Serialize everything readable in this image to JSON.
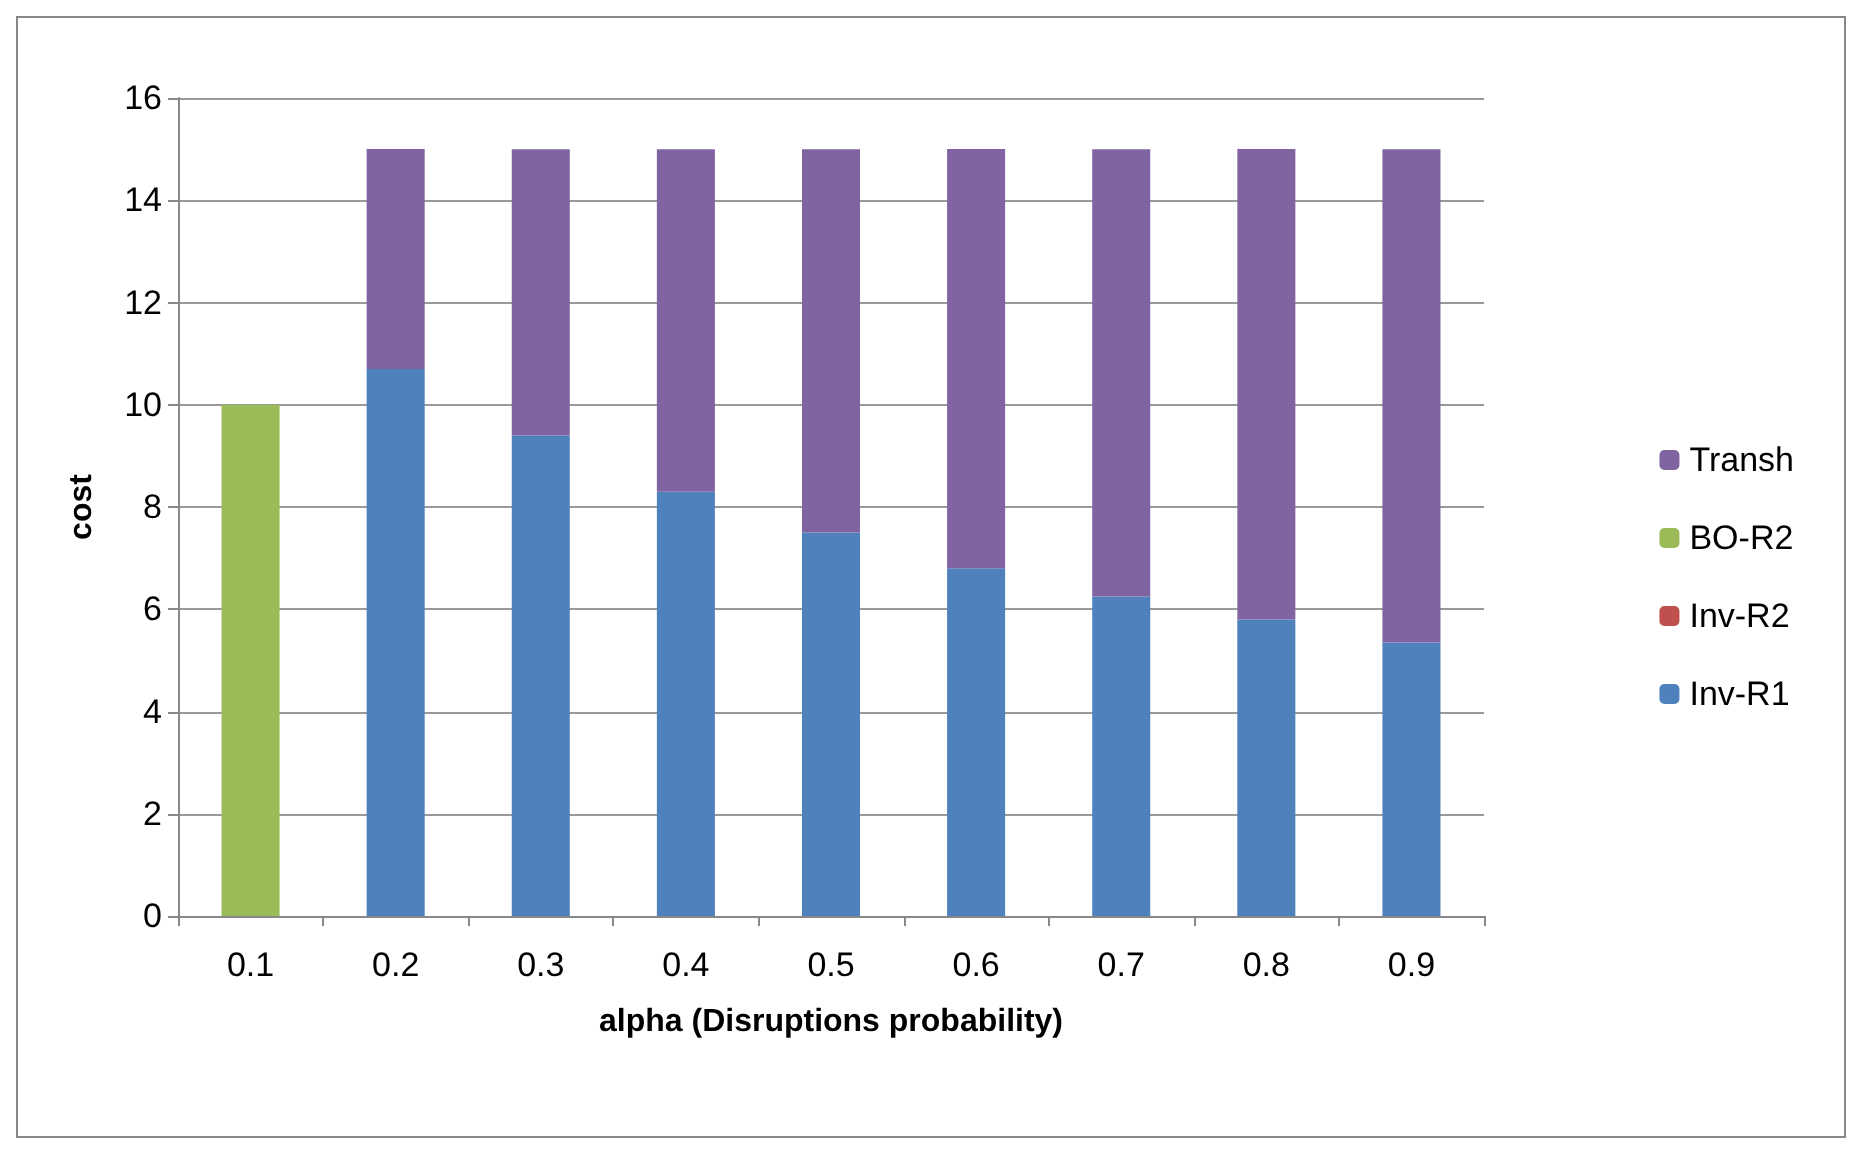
{
  "chart_data": {
    "type": "bar",
    "stacked": true,
    "xlabel": "alpha (Disruptions probability)",
    "ylabel": "cost",
    "categories": [
      "0.1",
      "0.2",
      "0.3",
      "0.4",
      "0.5",
      "0.6",
      "0.7",
      "0.8",
      "0.9"
    ],
    "series": [
      {
        "name": "Inv-R1",
        "color": "#4f81bd",
        "values": [
          0,
          10.7,
          9.4,
          8.3,
          7.5,
          6.8,
          6.25,
          5.8,
          5.35
        ]
      },
      {
        "name": "Inv-R2",
        "color": "#c0504d",
        "values": [
          0,
          0,
          0,
          0,
          0,
          0,
          0,
          0,
          0
        ]
      },
      {
        "name": "BO-R2",
        "color": "#9bbb59",
        "values": [
          10,
          0,
          0,
          0,
          0,
          0,
          0,
          0,
          0
        ]
      },
      {
        "name": "Transh",
        "color": "#8064a2",
        "values": [
          0,
          4.3,
          5.6,
          6.7,
          7.5,
          8.2,
          8.75,
          9.2,
          9.65
        ]
      }
    ],
    "ylim": [
      0,
      16
    ],
    "yticks": [
      0,
      2,
      4,
      6,
      8,
      10,
      12,
      14,
      16
    ],
    "grid": "y",
    "legend": "right"
  }
}
